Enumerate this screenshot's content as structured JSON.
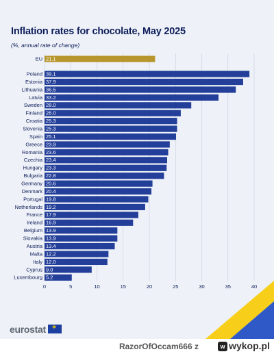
{
  "title": "Inflation rates for chocolate, May 2025",
  "subtitle": "(%, annual rate of change)",
  "brand": "eurostat",
  "footer": {
    "user": "RazorOfOccam666",
    "separator": "z",
    "site": "wykop.pl"
  },
  "colors": {
    "eu_bar": "#b8962e",
    "country_bar": "#233f99",
    "title": "#0e1f5b"
  },
  "chart_data": {
    "type": "bar",
    "orientation": "horizontal",
    "title": "Inflation rates for chocolate, May 2025",
    "subtitle": "(%, annual rate of change)",
    "xlim": [
      0,
      40
    ],
    "xticks": [
      0,
      5,
      10,
      15,
      20,
      25,
      30,
      35,
      40
    ],
    "grid": true,
    "highlight": {
      "category": "EU",
      "value": 21.1
    },
    "categories": [
      "Poland",
      "Estonia",
      "Lithuania",
      "Latvia",
      "Sweden",
      "Finland",
      "Croatia",
      "Slovenia",
      "Spain",
      "Greece",
      "Romania",
      "Czechia",
      "Hungary",
      "Bulgaria",
      "Germany",
      "Denmark",
      "Portugal",
      "Netherlands",
      "France",
      "Ireland",
      "Belgium",
      "Slovakia",
      "Austria",
      "Malta",
      "Italy",
      "Cyprus",
      "Luxembourg"
    ],
    "values": [
      39.1,
      37.9,
      36.5,
      33.2,
      28.0,
      26.0,
      25.3,
      25.3,
      25.1,
      23.9,
      23.6,
      23.4,
      23.3,
      22.8,
      20.6,
      20.4,
      19.8,
      19.2,
      17.9,
      16.9,
      13.9,
      13.9,
      13.4,
      12.2,
      12.0,
      9.0,
      5.2
    ],
    "labels": [
      "39.1",
      "37.9",
      "36.5",
      "33.2",
      "28.0",
      "26.0",
      "25.3",
      "25.3",
      "25.1",
      "23.9",
      "23.6",
      "23.4",
      "23.3",
      "22.8",
      "20.6",
      "20.4",
      "19.8",
      "19.2",
      "17.9",
      "16.9",
      "13.9",
      "13.9",
      "13.4",
      "12.2",
      "12.0",
      "9.0",
      "5.2"
    ]
  }
}
